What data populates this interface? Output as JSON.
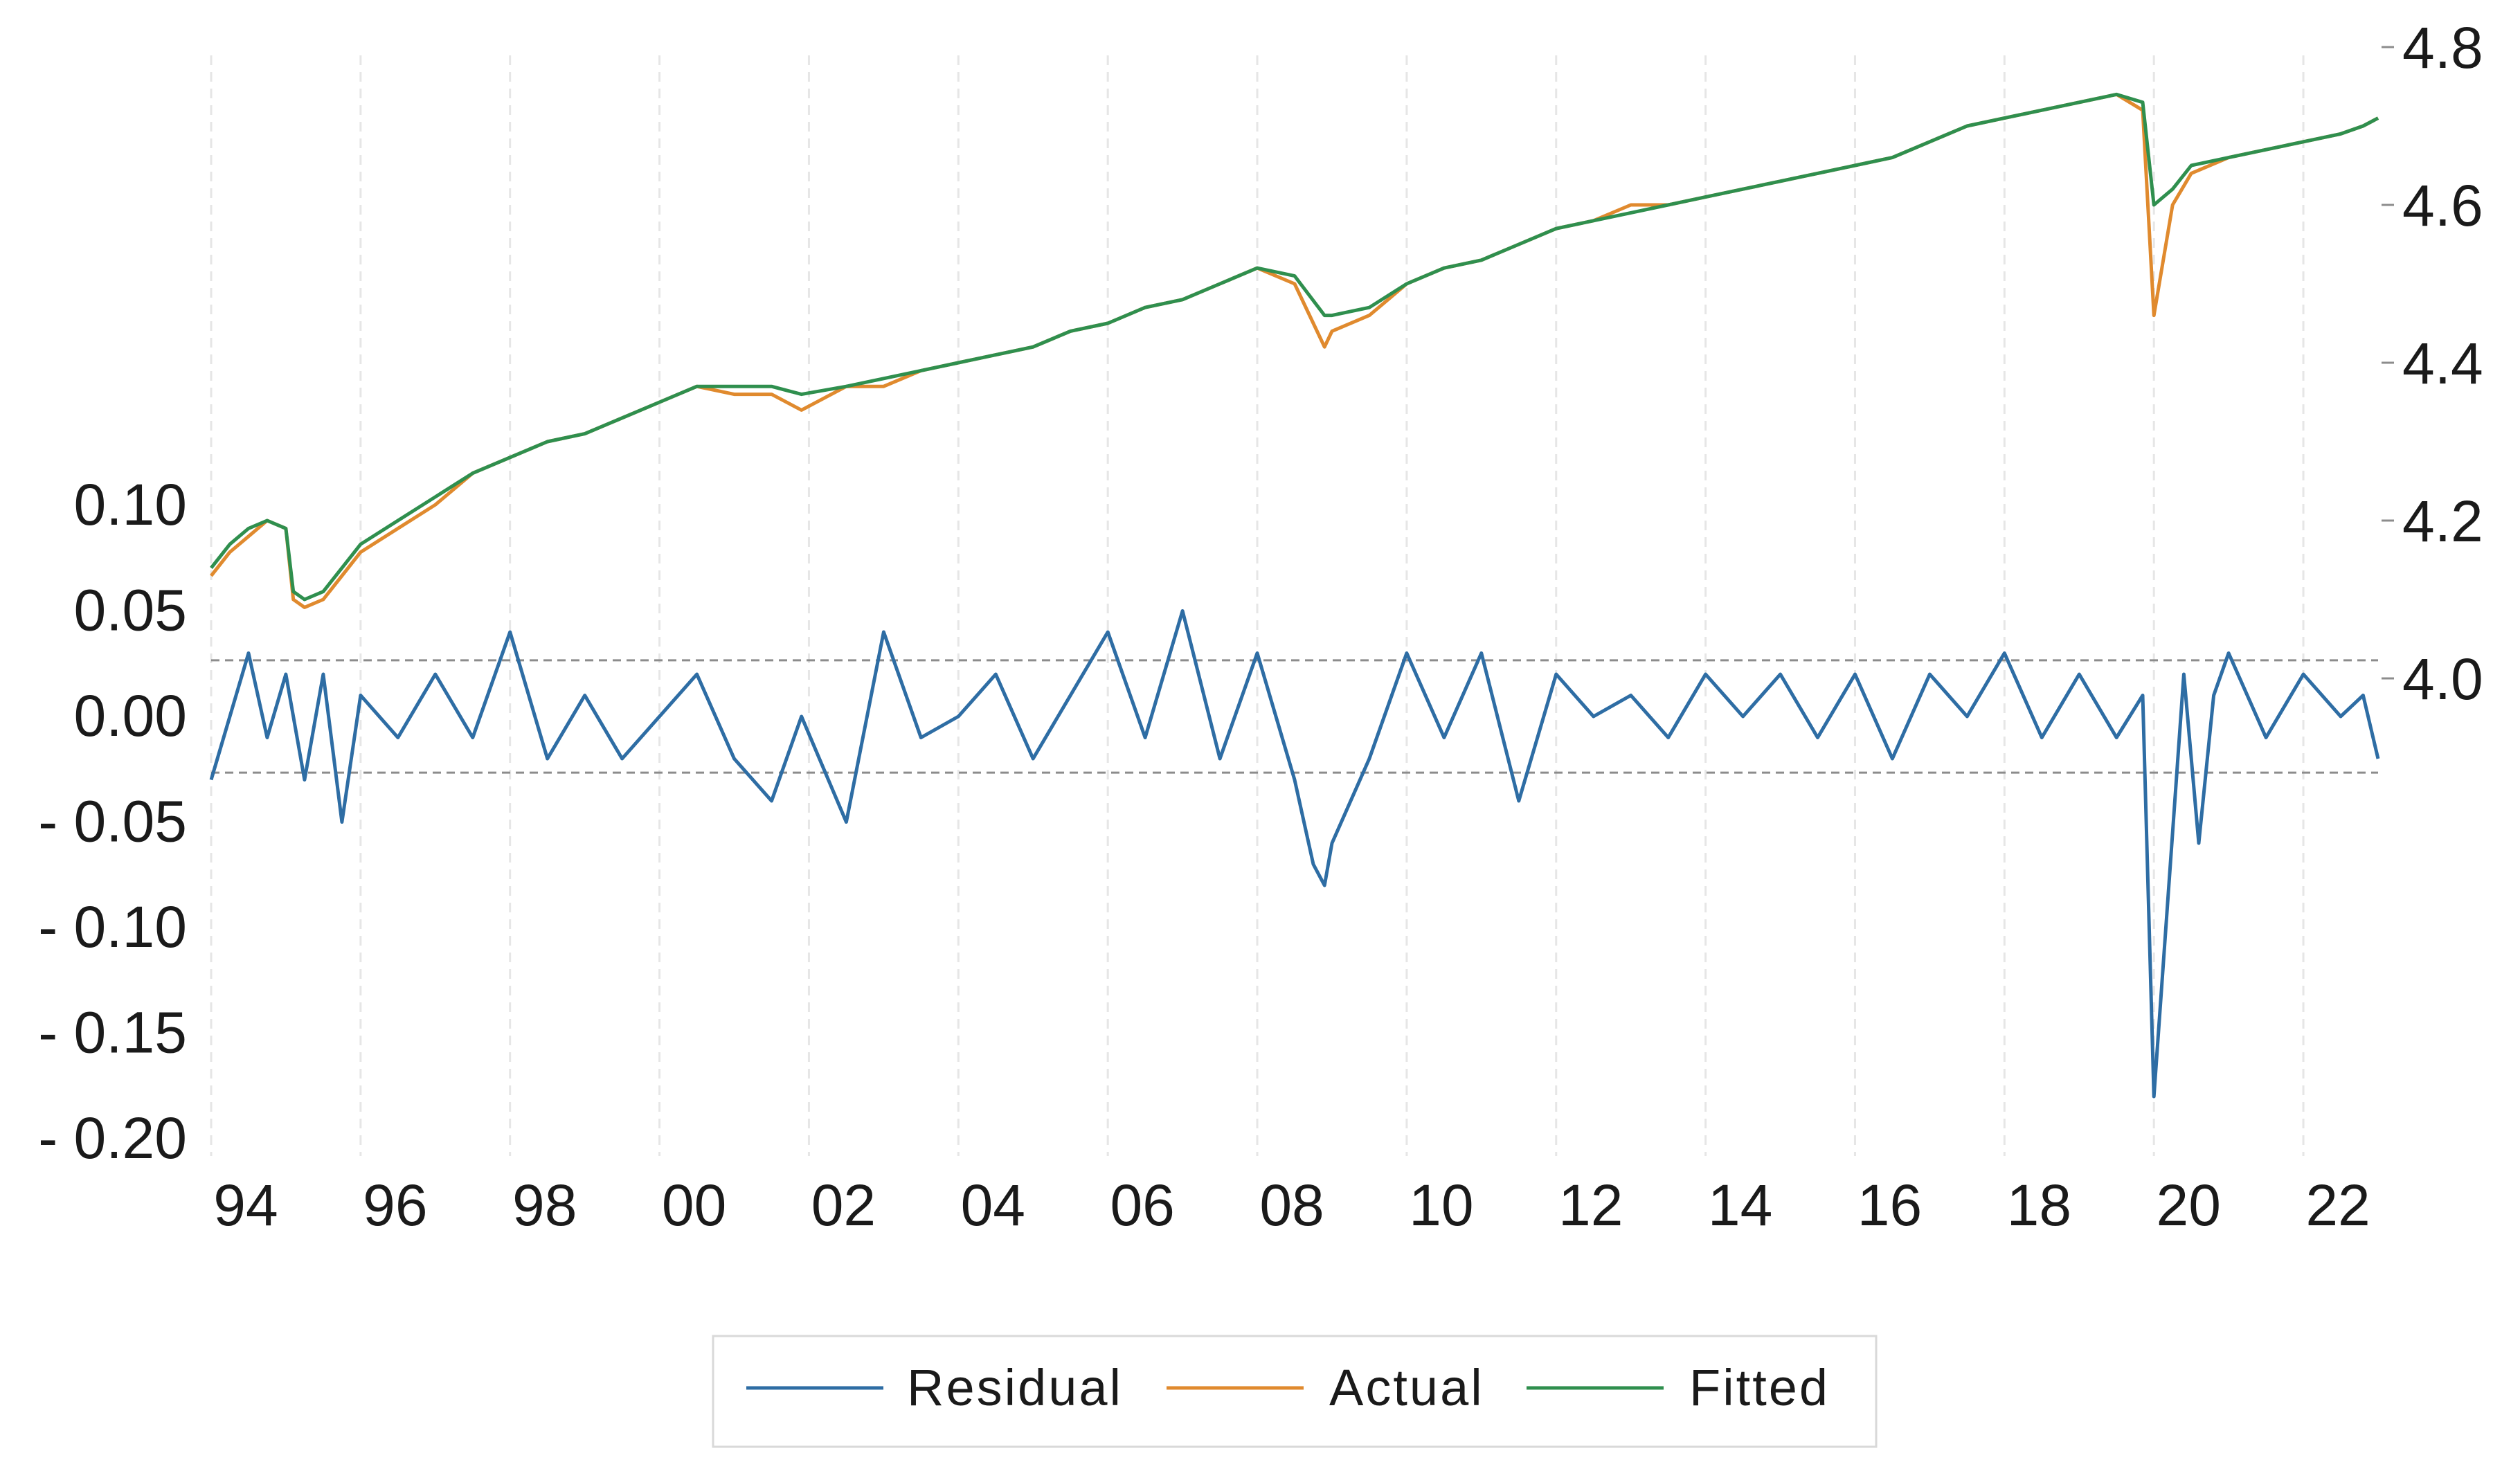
{
  "chart_data": {
    "type": "line",
    "title": "",
    "xlabel": "",
    "ylabel": "",
    "x_range": [
      1994.0,
      2023.0
    ],
    "x_tick_labels": [
      "94",
      "96",
      "98",
      "00",
      "02",
      "04",
      "06",
      "08",
      "10",
      "12",
      "14",
      "16",
      "18",
      "20",
      "22"
    ],
    "x_tick_years": [
      1994,
      1996,
      1998,
      2000,
      2002,
      2004,
      2006,
      2008,
      2010,
      2012,
      2014,
      2016,
      2018,
      2020,
      2022
    ],
    "left_axis": {
      "ylim": [
        -0.2,
        0.1
      ],
      "tick_labels": [
        "0.10",
        "0.05",
        "0.00",
        "- 0.05",
        "- 0.10",
        "- 0.15",
        "- 0.20"
      ],
      "tick_values": [
        0.1,
        0.05,
        0.0,
        -0.05,
        -0.1,
        -0.15,
        -0.2
      ]
    },
    "right_axis": {
      "ylim": [
        4.0,
        4.8
      ],
      "tick_labels": [
        "4.8",
        "4.6",
        "4.4",
        "4.2",
        "4.0"
      ],
      "tick_values": [
        4.8,
        4.6,
        4.4,
        4.2,
        4.0
      ]
    },
    "reference_lines": [
      0.0266,
      -0.0266
    ],
    "grid": "vertical dashed",
    "legend": {
      "position": "bottom",
      "entries": [
        "Residual",
        "Actual",
        "Fitted"
      ]
    },
    "colors": {
      "Residual": "#2e6da4",
      "Actual": "#e08a2e",
      "Fitted": "#2f8f4e"
    },
    "series": [
      {
        "name": "Actual",
        "axis": "right",
        "x": [
          1994.0,
          1994.25,
          1994.5,
          1994.75,
          1995.0,
          1995.1,
          1995.25,
          1995.5,
          1995.75,
          1996.0,
          1996.5,
          1997.0,
          1997.5,
          1998.0,
          1998.5,
          1999.0,
          1999.5,
          2000.0,
          2000.5,
          2001.0,
          2001.5,
          2001.9,
          2002.5,
          2003.0,
          2003.5,
          2004.0,
          2004.5,
          2005.0,
          2005.5,
          2006.0,
          2006.5,
          2007.0,
          2007.5,
          2008.0,
          2008.5,
          2008.9,
          2009.0,
          2009.5,
          2010.0,
          2010.5,
          2011.0,
          2011.5,
          2012.0,
          2012.5,
          2013.0,
          2013.5,
          2014.0,
          2014.5,
          2015.0,
          2015.5,
          2016.0,
          2016.5,
          2017.0,
          2017.5,
          2018.0,
          2018.5,
          2019.0,
          2019.5,
          2019.85,
          2020.0,
          2020.25,
          2020.5,
          2021.0,
          2021.5,
          2022.0,
          2022.5,
          2022.8,
          2023.0
        ],
        "y": [
          4.13,
          4.16,
          4.18,
          4.2,
          4.19,
          4.1,
          4.09,
          4.1,
          4.13,
          4.16,
          4.19,
          4.22,
          4.26,
          4.28,
          4.3,
          4.31,
          4.33,
          4.35,
          4.37,
          4.36,
          4.36,
          4.34,
          4.37,
          4.37,
          4.39,
          4.4,
          4.41,
          4.42,
          4.44,
          4.45,
          4.47,
          4.48,
          4.5,
          4.52,
          4.5,
          4.42,
          4.44,
          4.46,
          4.5,
          4.52,
          4.53,
          4.55,
          4.57,
          4.58,
          4.6,
          4.6,
          4.61,
          4.62,
          4.63,
          4.64,
          4.65,
          4.66,
          4.68,
          4.7,
          4.71,
          4.72,
          4.73,
          4.74,
          4.72,
          4.46,
          4.6,
          4.64,
          4.66,
          4.67,
          4.68,
          4.69,
          4.7,
          4.71
        ]
      },
      {
        "name": "Fitted",
        "axis": "right",
        "x": [
          1994.0,
          1994.25,
          1994.5,
          1994.75,
          1995.0,
          1995.1,
          1995.25,
          1995.5,
          1995.75,
          1996.0,
          1996.5,
          1997.0,
          1997.5,
          1998.0,
          1998.5,
          1999.0,
          1999.5,
          2000.0,
          2000.5,
          2001.0,
          2001.5,
          2001.9,
          2002.5,
          2003.0,
          2003.5,
          2004.0,
          2004.5,
          2005.0,
          2005.5,
          2006.0,
          2006.5,
          2007.0,
          2007.5,
          2008.0,
          2008.5,
          2008.9,
          2009.0,
          2009.5,
          2010.0,
          2010.5,
          2011.0,
          2011.5,
          2012.0,
          2012.5,
          2013.0,
          2013.5,
          2014.0,
          2014.5,
          2015.0,
          2015.5,
          2016.0,
          2016.5,
          2017.0,
          2017.5,
          2018.0,
          2018.5,
          2019.0,
          2019.5,
          2019.85,
          2020.0,
          2020.25,
          2020.5,
          2021.0,
          2021.5,
          2022.0,
          2022.5,
          2022.8,
          2023.0
        ],
        "y": [
          4.14,
          4.17,
          4.19,
          4.2,
          4.19,
          4.11,
          4.1,
          4.11,
          4.14,
          4.17,
          4.2,
          4.23,
          4.26,
          4.28,
          4.3,
          4.31,
          4.33,
          4.35,
          4.37,
          4.37,
          4.37,
          4.36,
          4.37,
          4.38,
          4.39,
          4.4,
          4.41,
          4.42,
          4.44,
          4.45,
          4.47,
          4.48,
          4.5,
          4.52,
          4.51,
          4.46,
          4.46,
          4.47,
          4.5,
          4.52,
          4.53,
          4.55,
          4.57,
          4.58,
          4.59,
          4.6,
          4.61,
          4.62,
          4.63,
          4.64,
          4.65,
          4.66,
          4.68,
          4.7,
          4.71,
          4.72,
          4.73,
          4.74,
          4.73,
          4.6,
          4.62,
          4.65,
          4.66,
          4.67,
          4.68,
          4.69,
          4.7,
          4.71
        ]
      },
      {
        "name": "Residual",
        "axis": "left",
        "x": [
          1994.0,
          1994.25,
          1994.5,
          1994.75,
          1995.0,
          1995.25,
          1995.5,
          1995.75,
          1996.0,
          1996.5,
          1997.0,
          1997.5,
          1998.0,
          1998.5,
          1999.0,
          1999.5,
          2000.0,
          2000.5,
          2001.0,
          2001.5,
          2001.9,
          2002.5,
          2003.0,
          2003.5,
          2004.0,
          2004.5,
          2005.0,
          2005.5,
          2006.0,
          2006.5,
          2007.0,
          2007.5,
          2008.0,
          2008.25,
          2008.5,
          2008.75,
          2008.9,
          2009.0,
          2009.5,
          2010.0,
          2010.5,
          2011.0,
          2011.5,
          2012.0,
          2012.5,
          2013.0,
          2013.5,
          2014.0,
          2014.5,
          2015.0,
          2015.5,
          2016.0,
          2016.5,
          2017.0,
          2017.5,
          2018.0,
          2018.5,
          2019.0,
          2019.5,
          2019.85,
          2020.0,
          2020.2,
          2020.4,
          2020.6,
          2020.8,
          2021.0,
          2021.5,
          2022.0,
          2022.5,
          2022.8,
          2023.0
        ],
        "y": [
          -0.03,
          0.0,
          0.03,
          -0.01,
          0.02,
          -0.03,
          0.02,
          -0.05,
          0.01,
          -0.01,
          0.02,
          -0.01,
          0.04,
          -0.02,
          0.01,
          -0.02,
          0.0,
          0.02,
          -0.02,
          -0.04,
          0.0,
          -0.05,
          0.04,
          -0.01,
          0.0,
          0.02,
          -0.02,
          0.01,
          0.04,
          -0.01,
          0.05,
          -0.02,
          0.03,
          0.0,
          -0.03,
          -0.07,
          -0.08,
          -0.06,
          -0.02,
          0.03,
          -0.01,
          0.03,
          -0.04,
          0.02,
          0.0,
          0.01,
          -0.01,
          0.02,
          0.0,
          0.02,
          -0.01,
          0.02,
          -0.02,
          0.02,
          0.0,
          0.03,
          -0.01,
          0.02,
          -0.01,
          0.01,
          -0.18,
          -0.08,
          0.02,
          -0.06,
          0.01,
          0.03,
          -0.01,
          0.02,
          0.0,
          0.01,
          -0.02
        ]
      }
    ]
  }
}
